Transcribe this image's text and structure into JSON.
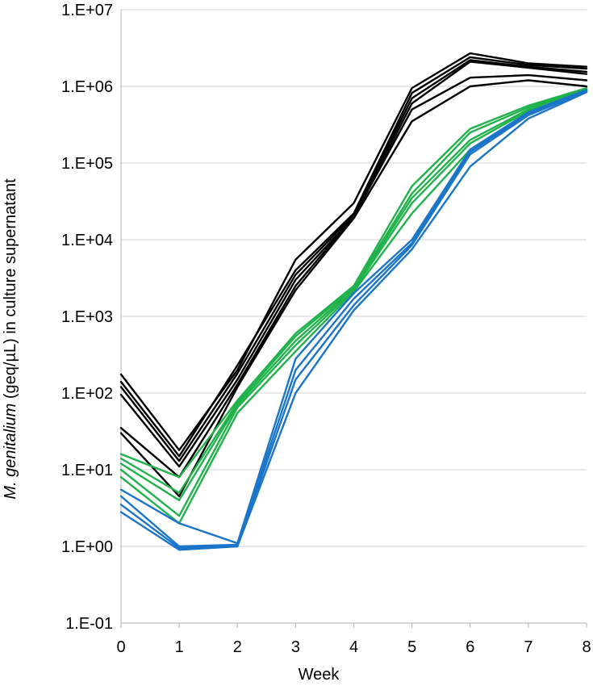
{
  "chart_data": {
    "type": "line",
    "title": "",
    "xlabel": "Week",
    "ylabel_italic": "M. genitalium",
    "ylabel_rest": " (geq/µL) in culture supernatant",
    "yscale": "log",
    "xlim": [
      0,
      8
    ],
    "ylim": [
      0.1,
      10000000
    ],
    "grid": "horizontal",
    "legend": "none",
    "x": [
      0,
      1,
      2,
      3,
      4,
      5,
      6,
      7,
      8
    ],
    "x_ticks": [
      "0",
      "1",
      "2",
      "3",
      "4",
      "5",
      "6",
      "7",
      "8"
    ],
    "y_ticks": [
      {
        "value": 10000000,
        "label": "1.E+07"
      },
      {
        "value": 1000000,
        "label": "1.E+06"
      },
      {
        "value": 100000,
        "label": "1.E+05"
      },
      {
        "value": 10000,
        "label": "1.E+04"
      },
      {
        "value": 1000,
        "label": "1.E+03"
      },
      {
        "value": 100,
        "label": "1.E+02"
      },
      {
        "value": 10,
        "label": "1.E+01"
      },
      {
        "value": 1,
        "label": "1.E+00"
      },
      {
        "value": 0.1,
        "label": "1.E-01"
      }
    ],
    "colors": {
      "black": "#000000",
      "green": "#22b24c",
      "blue": "#1b75c8",
      "grid": "#d9d9d9",
      "axis": "#bfbfbf"
    },
    "series": [
      {
        "color": "black",
        "values": [
          175,
          18,
          200,
          5500,
          30000,
          950000,
          2700000,
          2000000,
          1800000
        ]
      },
      {
        "color": "black",
        "values": [
          140,
          15,
          230,
          4000,
          22000,
          820000,
          2400000,
          1900000,
          1700000
        ]
      },
      {
        "color": "black",
        "values": [
          120,
          13,
          180,
          3500,
          21000,
          700000,
          2200000,
          1800000,
          1550000
        ]
      },
      {
        "color": "black",
        "values": [
          95,
          11,
          150,
          3000,
          20000,
          600000,
          2100000,
          1750000,
          1450000
        ]
      },
      {
        "color": "black",
        "values": [
          35,
          8,
          130,
          2500,
          20000,
          500000,
          1300000,
          1400000,
          1200000
        ]
      },
      {
        "color": "black",
        "values": [
          30,
          4.5,
          120,
          2200,
          19000,
          350000,
          1000000,
          1200000,
          1000000
        ]
      },
      {
        "color": "green",
        "values": [
          16,
          8,
          80,
          600,
          2500,
          50000,
          280000,
          560000,
          950000
        ]
      },
      {
        "color": "green",
        "values": [
          14,
          5,
          75,
          550,
          2400,
          40000,
          250000,
          530000,
          920000
        ]
      },
      {
        "color": "green",
        "values": [
          12,
          4,
          70,
          480,
          2300,
          35000,
          200000,
          500000,
          900000
        ]
      },
      {
        "color": "green",
        "values": [
          10,
          2.5,
          65,
          420,
          2200,
          30000,
          180000,
          480000,
          880000
        ]
      },
      {
        "color": "green",
        "values": [
          8,
          2,
          55,
          350,
          2100,
          22000,
          150000,
          450000,
          870000
        ]
      },
      {
        "color": "blue",
        "values": [
          5.5,
          2,
          1.1,
          280,
          2000,
          10000,
          150000,
          460000,
          900000
        ]
      },
      {
        "color": "blue",
        "values": [
          4.5,
          1,
          1.05,
          200,
          1700,
          9000,
          140000,
          440000,
          880000
        ]
      },
      {
        "color": "blue",
        "values": [
          3.5,
          0.95,
          1.0,
          150,
          1400,
          8500,
          130000,
          420000,
          860000
        ]
      },
      {
        "color": "blue",
        "values": [
          2.8,
          0.9,
          1.0,
          100,
          1200,
          7500,
          90000,
          380000,
          840000
        ]
      }
    ]
  }
}
